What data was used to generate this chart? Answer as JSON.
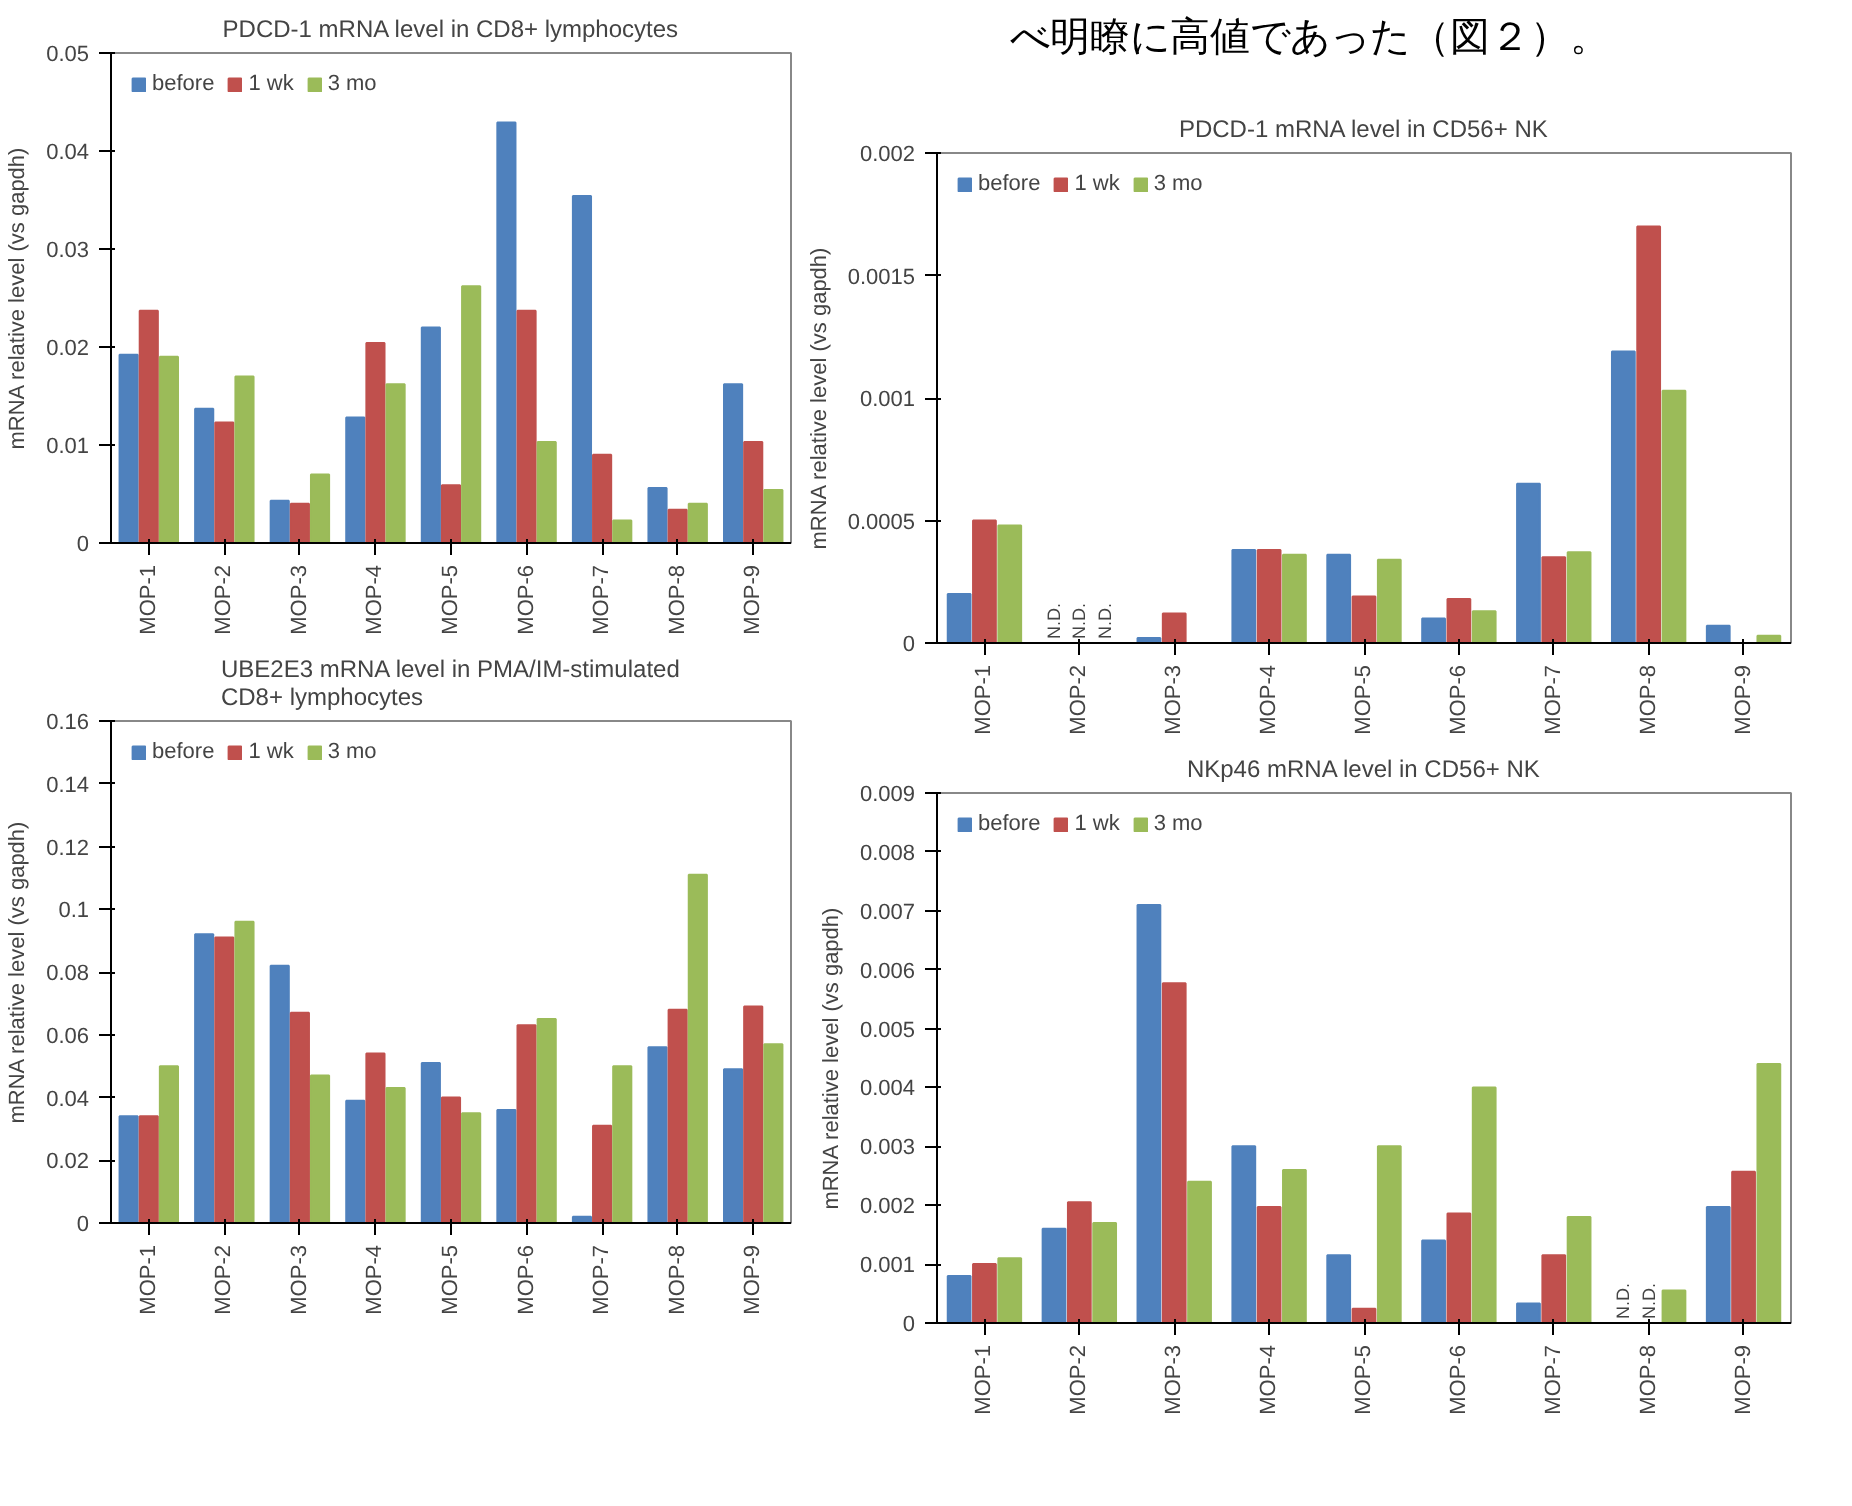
{
  "chart_data": [
    {
      "type": "bar",
      "title": "PDCD-1 mRNA level in CD8+ lymphocytes",
      "ylabel": "mRNA relative level (vs gapdh)",
      "categories": [
        "MOP-1",
        "MOP-2",
        "MOP-3",
        "MOP-4",
        "MOP-5",
        "MOP-6",
        "MOP-7",
        "MOP-8",
        "MOP-9"
      ],
      "series": [
        {
          "name": "before",
          "color": "#4f81bd",
          "values": [
            0.0192,
            0.0137,
            0.0043,
            0.0128,
            0.022,
            0.0429,
            0.0354,
            0.0056,
            0.0162
          ]
        },
        {
          "name": "1 wk",
          "color": "#c0504d",
          "values": [
            0.0237,
            0.0123,
            0.004,
            0.0204,
            0.0059,
            0.0237,
            0.009,
            0.0034,
            0.0103
          ]
        },
        {
          "name": "3 mo",
          "color": "#9bbb59",
          "values": [
            0.019,
            0.017,
            0.007,
            0.0162,
            0.0262,
            0.0103,
            0.0023,
            0.004,
            0.0054
          ]
        }
      ],
      "ylim": [
        0,
        0.05
      ],
      "yticks": [
        {
          "value": 0,
          "label": "0"
        },
        {
          "value": 0.01,
          "label": "0.01"
        },
        {
          "value": 0.02,
          "label": "0.02"
        },
        {
          "value": 0.03,
          "label": "0.03"
        },
        {
          "value": 0.04,
          "label": "0.04"
        },
        {
          "value": 0.05,
          "label": "0.05"
        }
      ],
      "legend": "top left",
      "grid": false
    },
    {
      "type": "bar",
      "title": "UBE2E3 mRNA level in PMA/IM-stimulated\nCD8+ lymphocytes",
      "ylabel": "mRNA relative level (vs gapdh)",
      "categories": [
        "MOP-1",
        "MOP-2",
        "MOP-3",
        "MOP-4",
        "MOP-5",
        "MOP-6",
        "MOP-7",
        "MOP-8",
        "MOP-9"
      ],
      "series": [
        {
          "name": "before",
          "color": "#4f81bd",
          "values": [
            0.034,
            0.092,
            0.082,
            0.039,
            0.051,
            0.036,
            0.002,
            0.056,
            0.049
          ]
        },
        {
          "name": "1 wk",
          "color": "#c0504d",
          "values": [
            0.034,
            0.091,
            0.067,
            0.054,
            0.04,
            0.063,
            0.031,
            0.068,
            0.069
          ]
        },
        {
          "name": "3 mo",
          "color": "#9bbb59",
          "values": [
            0.05,
            0.096,
            0.047,
            0.043,
            0.035,
            0.065,
            0.05,
            0.111,
            0.057
          ]
        }
      ],
      "ylim": [
        0,
        0.16
      ],
      "yticks": [
        {
          "value": 0,
          "label": "0"
        },
        {
          "value": 0.02,
          "label": "0.02"
        },
        {
          "value": 0.04,
          "label": "0.04"
        },
        {
          "value": 0.06,
          "label": "0.06"
        },
        {
          "value": 0.08,
          "label": "0.08"
        },
        {
          "value": 0.1,
          "label": "0.1"
        },
        {
          "value": 0.12,
          "label": "0.12"
        },
        {
          "value": 0.14,
          "label": "0.14"
        },
        {
          "value": 0.16,
          "label": "0.16"
        }
      ],
      "legend": "top left",
      "grid": false
    },
    {
      "type": "other",
      "title": "べ明瞭に高値であった（図２）。"
    },
    {
      "type": "bar",
      "title": "PDCD-1 mRNA level in CD56+ NK",
      "ylabel": "mRNA relative level (vs gapdh)",
      "categories": [
        "MOP-1",
        "MOP-2",
        "MOP-3",
        "MOP-4",
        "MOP-5",
        "MOP-6",
        "MOP-7",
        "MOP-8",
        "MOP-9"
      ],
      "series": [
        {
          "name": "before",
          "color": "#4f81bd",
          "values": [
            0.0002,
            null,
            2e-05,
            0.00038,
            0.00036,
            0.0001,
            0.00065,
            0.00119,
            7e-05
          ]
        },
        {
          "name": "1 wk",
          "color": "#c0504d",
          "values": [
            0.0005,
            null,
            0.00012,
            0.00038,
            0.00019,
            0.00018,
            0.00035,
            0.0017,
            0
          ]
        },
        {
          "name": "3 mo",
          "color": "#9bbb59",
          "values": [
            0.00048,
            null,
            0,
            0.00036,
            0.00034,
            0.00013,
            0.00037,
            0.00103,
            3e-05
          ]
        }
      ],
      "ylim": [
        0,
        0.002
      ],
      "yticks": [
        {
          "value": 0,
          "label": "0"
        },
        {
          "value": 0.0005,
          "label": "0.0005"
        },
        {
          "value": 0.001,
          "label": "0.001"
        },
        {
          "value": 0.0015,
          "label": "0.0015"
        },
        {
          "value": 0.002,
          "label": "0.002"
        }
      ],
      "legend": "top left",
      "grid": false,
      "annotations": [
        "N.D.",
        "N.D.",
        "N.D."
      ]
    },
    {
      "type": "bar",
      "title": "NKp46 mRNA level in CD56+ NK",
      "ylabel": "mRNA relative level (vs gapdh)",
      "categories": [
        "MOP-1",
        "MOP-2",
        "MOP-3",
        "MOP-4",
        "MOP-5",
        "MOP-6",
        "MOP-7",
        "MOP-8",
        "MOP-9"
      ],
      "series": [
        {
          "name": "before",
          "color": "#4f81bd",
          "values": [
            0.0008,
            0.0016,
            0.0071,
            0.003,
            0.00115,
            0.0014,
            0.00033,
            null,
            0.00197
          ]
        },
        {
          "name": "1 wk",
          "color": "#c0504d",
          "values": [
            0.001,
            0.00205,
            0.00577,
            0.00197,
            0.00024,
            0.00186,
            0.00115,
            null,
            0.00257
          ]
        },
        {
          "name": "3 mo",
          "color": "#9bbb59",
          "values": [
            0.0011,
            0.0017,
            0.0024,
            0.0026,
            0.003,
            0.004,
            0.0018,
            0.00055,
            0.0044
          ]
        }
      ],
      "ylim": [
        0,
        0.009
      ],
      "yticks": [
        {
          "value": 0,
          "label": "0"
        },
        {
          "value": 0.001,
          "label": "0.001"
        },
        {
          "value": 0.002,
          "label": "0.002"
        },
        {
          "value": 0.003,
          "label": "0.003"
        },
        {
          "value": 0.004,
          "label": "0.004"
        },
        {
          "value": 0.005,
          "label": "0.005"
        },
        {
          "value": 0.006,
          "label": "0.006"
        },
        {
          "value": 0.007,
          "label": "0.007"
        },
        {
          "value": 0.008,
          "label": "0.008"
        },
        {
          "value": 0.009,
          "label": "0.009"
        }
      ],
      "legend": "top left",
      "grid": false,
      "annotations": [
        "N.D.",
        "N.D."
      ]
    }
  ]
}
